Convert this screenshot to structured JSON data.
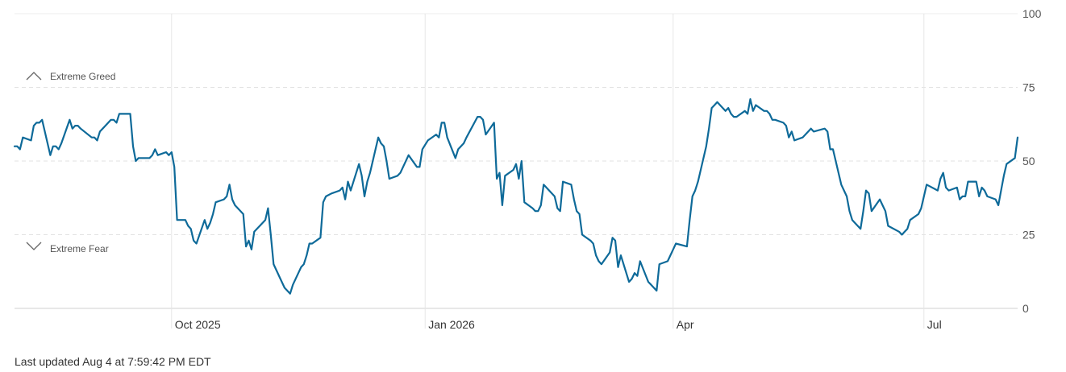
{
  "chart_data": {
    "type": "line",
    "title": "",
    "xlabel": "",
    "ylabel": "",
    "ylim": [
      0,
      100
    ],
    "y_ticks": [
      0,
      25,
      50,
      75,
      100
    ],
    "x_tick_labels": [
      "Oct 2025",
      "Jan 2026",
      "Apr",
      "Jul"
    ],
    "grid": true,
    "zones": {
      "greed": {
        "label": "Extreme Greed",
        "icon": "chevron-up-icon"
      },
      "fear": {
        "label": "Extreme Fear",
        "icon": "chevron-down-icon"
      }
    },
    "line_color": "#0e6a99",
    "series": [
      {
        "x": [
          "2025-08-05",
          "2025-08-06",
          "2025-08-07",
          "2025-08-08",
          "2025-08-11",
          "2025-08-12",
          "2025-08-13",
          "2025-08-14",
          "2025-08-15",
          "2025-08-18",
          "2025-08-19",
          "2025-08-20",
          "2025-08-21",
          "2025-08-22",
          "2025-08-25",
          "2025-08-26",
          "2025-08-27",
          "2025-08-28",
          "2025-08-29",
          "2025-09-02",
          "2025-09-03",
          "2025-09-04",
          "2025-09-05",
          "2025-09-08",
          "2025-09-09",
          "2025-09-10",
          "2025-09-11",
          "2025-09-12",
          "2025-09-15",
          "2025-09-16",
          "2025-09-17",
          "2025-09-18",
          "2025-09-19",
          "2025-09-22",
          "2025-09-23",
          "2025-09-24",
          "2025-09-25",
          "2025-09-26",
          "2025-09-29",
          "2025-09-30",
          "2025-10-01",
          "2025-10-02",
          "2025-10-03",
          "2025-10-06",
          "2025-10-07",
          "2025-10-08",
          "2025-10-09",
          "2025-10-10",
          "2025-10-13",
          "2025-10-14",
          "2025-10-15",
          "2025-10-16",
          "2025-10-17",
          "2025-10-20",
          "2025-10-21",
          "2025-10-22",
          "2025-10-23",
          "2025-10-24",
          "2025-10-27",
          "2025-10-28",
          "2025-10-29",
          "2025-10-30",
          "2025-10-31",
          "2025-11-03",
          "2025-11-04",
          "2025-11-05",
          "2025-11-06",
          "2025-11-07",
          "2025-11-10",
          "2025-11-11",
          "2025-11-12",
          "2025-11-13",
          "2025-11-14",
          "2025-11-17",
          "2025-11-18",
          "2025-11-19",
          "2025-11-20",
          "2025-11-21",
          "2025-11-24",
          "2025-11-25",
          "2025-11-26",
          "2025-11-28",
          "2025-12-01",
          "2025-12-02",
          "2025-12-03",
          "2025-12-04",
          "2025-12-05",
          "2025-12-08",
          "2025-12-09",
          "2025-12-10",
          "2025-12-11",
          "2025-12-12",
          "2025-12-15",
          "2025-12-16",
          "2025-12-17",
          "2025-12-18",
          "2025-12-19",
          "2025-12-22",
          "2025-12-23",
          "2025-12-24",
          "2025-12-26",
          "2025-12-29",
          "2025-12-30",
          "2025-12-31",
          "2026-01-02",
          "2026-01-05",
          "2026-01-06",
          "2026-01-07",
          "2026-01-08",
          "2026-01-09",
          "2026-01-12",
          "2026-01-13",
          "2026-01-14",
          "2026-01-15",
          "2026-01-16",
          "2026-01-20",
          "2026-01-21",
          "2026-01-22",
          "2026-01-23",
          "2026-01-26",
          "2026-01-27",
          "2026-01-28",
          "2026-01-29",
          "2026-01-30",
          "2026-02-02",
          "2026-02-03",
          "2026-02-04",
          "2026-02-05",
          "2026-02-06",
          "2026-02-09",
          "2026-02-10",
          "2026-02-11",
          "2026-02-12",
          "2026-02-13",
          "2026-02-17",
          "2026-02-18",
          "2026-02-19",
          "2026-02-20",
          "2026-02-23",
          "2026-02-24",
          "2026-02-25",
          "2026-02-26",
          "2026-02-27",
          "2026-03-02",
          "2026-03-03",
          "2026-03-04",
          "2026-03-05",
          "2026-03-06",
          "2026-03-09",
          "2026-03-10",
          "2026-03-11",
          "2026-03-12",
          "2026-03-13",
          "2026-03-16",
          "2026-03-17",
          "2026-03-18",
          "2026-03-19",
          "2026-03-20",
          "2026-03-23",
          "2026-03-24",
          "2026-03-25",
          "2026-03-26",
          "2026-03-27",
          "2026-03-30",
          "2026-03-31",
          "2026-04-01",
          "2026-04-02",
          "2026-04-06",
          "2026-04-07",
          "2026-04-08",
          "2026-04-09",
          "2026-04-10",
          "2026-04-13",
          "2026-04-14",
          "2026-04-15",
          "2026-04-16",
          "2026-04-17",
          "2026-04-20",
          "2026-04-21",
          "2026-04-22",
          "2026-04-23",
          "2026-04-24",
          "2026-04-27",
          "2026-04-28",
          "2026-04-29",
          "2026-04-30",
          "2026-05-01",
          "2026-05-04",
          "2026-05-05",
          "2026-05-06",
          "2026-05-07",
          "2026-05-08",
          "2026-05-11",
          "2026-05-12",
          "2026-05-13",
          "2026-05-14",
          "2026-05-15",
          "2026-05-18",
          "2026-05-19",
          "2026-05-20",
          "2026-05-21",
          "2026-05-22",
          "2026-05-26",
          "2026-05-27",
          "2026-05-28",
          "2026-05-29",
          "2026-06-01",
          "2026-06-02",
          "2026-06-03",
          "2026-06-04",
          "2026-06-05",
          "2026-06-08",
          "2026-06-09",
          "2026-06-10",
          "2026-06-11",
          "2026-06-12",
          "2026-06-15",
          "2026-06-16",
          "2026-06-17",
          "2026-06-18",
          "2026-06-22",
          "2026-06-23",
          "2026-06-24",
          "2026-06-25",
          "2026-06-26",
          "2026-06-29",
          "2026-06-30",
          "2026-07-01",
          "2026-07-02",
          "2026-07-06",
          "2026-07-07",
          "2026-07-08",
          "2026-07-09",
          "2026-07-10",
          "2026-07-13",
          "2026-07-14",
          "2026-07-15",
          "2026-07-16",
          "2026-07-17",
          "2026-07-20",
          "2026-07-21",
          "2026-07-22",
          "2026-07-23",
          "2026-07-24",
          "2026-07-27",
          "2026-07-28",
          "2026-07-29",
          "2026-07-30",
          "2026-07-31",
          "2026-08-03",
          "2026-08-04"
        ],
        "y": [
          55,
          55,
          54,
          58,
          57,
          62,
          63,
          63,
          64,
          52,
          55,
          55,
          54,
          56,
          64,
          61,
          62,
          62,
          61,
          58,
          58,
          57,
          60,
          63,
          64,
          64,
          63,
          66,
          66,
          66,
          55,
          50,
          51,
          51,
          51,
          52,
          54,
          52,
          53,
          52,
          53,
          48,
          30,
          30,
          28,
          27,
          23,
          22,
          30,
          27,
          29,
          32,
          36,
          37,
          38,
          42,
          37,
          35,
          32,
          21,
          23,
          20,
          26,
          29,
          30,
          34,
          25,
          15,
          9,
          7,
          6,
          5,
          8,
          14,
          15,
          18,
          22,
          22,
          24,
          36,
          38,
          39,
          40,
          41,
          37,
          43,
          40,
          49,
          45,
          38,
          43,
          46,
          58,
          56,
          55,
          50,
          44,
          45,
          46,
          48,
          52,
          48,
          48,
          54,
          57,
          59,
          58,
          63,
          63,
          58,
          51,
          54,
          55,
          56,
          58,
          65,
          65,
          64,
          59,
          63,
          44,
          46,
          35,
          45,
          47,
          49,
          44,
          50,
          36,
          34,
          33,
          33,
          35,
          42,
          38,
          34,
          33,
          43,
          42,
          37,
          33,
          32,
          25,
          23,
          22,
          18,
          16,
          15,
          19,
          24,
          23,
          14,
          18,
          9,
          10,
          12,
          11,
          16,
          9,
          8,
          7,
          6,
          15,
          16,
          18,
          20,
          22,
          21,
          30,
          38,
          40,
          43,
          55,
          61,
          68,
          69,
          70,
          67,
          68,
          66,
          65,
          65,
          67,
          66,
          71,
          67,
          69,
          67,
          67,
          66,
          64,
          64,
          63,
          62,
          58,
          60,
          57,
          58,
          59,
          60,
          61,
          60,
          61,
          60,
          54,
          54,
          42,
          40,
          38,
          33,
          30,
          27,
          33,
          40,
          39,
          33,
          37,
          35,
          33,
          28,
          26,
          25,
          26,
          27,
          30,
          32,
          34,
          38,
          42,
          40,
          44,
          46,
          41,
          40,
          41,
          37,
          38,
          38,
          43,
          43,
          38,
          41,
          40,
          38,
          37,
          35,
          40,
          45,
          49,
          51,
          58
        ]
      }
    ]
  },
  "footer": {
    "last_updated": "Last updated Aug 4 at 7:59:42 PM EDT"
  }
}
